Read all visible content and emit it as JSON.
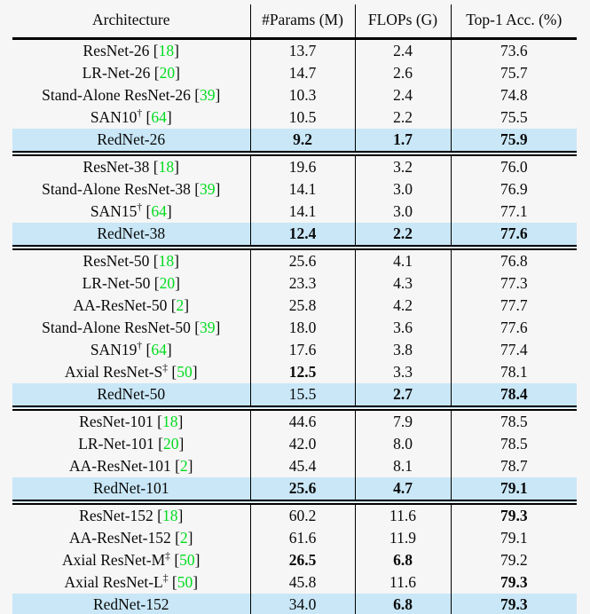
{
  "page": {
    "background": "#f6f6f6"
  },
  "table": {
    "columns": [
      "Architecture",
      "#Params (M)",
      "FLOPs (G)",
      "Top-1 Acc. (%)"
    ],
    "styles": {
      "highlight_row": "#c9e7f7",
      "citation_color": "#00dc1e",
      "rule_color": "#000000",
      "text_color": "#0a0a0a",
      "page_background": "#f6f6f6"
    },
    "sections": [
      {
        "rows": [
          {
            "name": "ResNet-26",
            "cite": "18",
            "params": "13.7",
            "flops": "2.4",
            "acc": "73.6"
          },
          {
            "name": "LR-Net-26",
            "cite": "20",
            "params": "14.7",
            "flops": "2.6",
            "acc": "75.7"
          },
          {
            "name": "Stand-Alone ResNet-26",
            "cite": "39",
            "params": "10.3",
            "flops": "2.4",
            "acc": "74.8"
          },
          {
            "name": "SAN10",
            "sup": "†",
            "cite": "64",
            "params": "10.5",
            "flops": "2.2",
            "acc": "75.5"
          },
          {
            "name": "RedNet-26",
            "highlight": true,
            "params": "9.2",
            "flops": "1.7",
            "acc": "75.9",
            "bold": [
              "params",
              "flops",
              "acc"
            ]
          }
        ]
      },
      {
        "rows": [
          {
            "name": "ResNet-38",
            "cite": "18",
            "params": "19.6",
            "flops": "3.2",
            "acc": "76.0"
          },
          {
            "name": "Stand-Alone ResNet-38",
            "cite": "39",
            "params": "14.1",
            "flops": "3.0",
            "acc": "76.9"
          },
          {
            "name": "SAN15",
            "sup": "†",
            "cite": "64",
            "params": "14.1",
            "flops": "3.0",
            "acc": "77.1"
          },
          {
            "name": "RedNet-38",
            "highlight": true,
            "params": "12.4",
            "flops": "2.2",
            "acc": "77.6",
            "bold": [
              "params",
              "flops",
              "acc"
            ]
          }
        ]
      },
      {
        "rows": [
          {
            "name": "ResNet-50",
            "cite": "18",
            "params": "25.6",
            "flops": "4.1",
            "acc": "76.8"
          },
          {
            "name": "LR-Net-50",
            "cite": "20",
            "params": "23.3",
            "flops": "4.3",
            "acc": "77.3"
          },
          {
            "name": "AA-ResNet-50",
            "cite": "2",
            "params": "25.8",
            "flops": "4.2",
            "acc": "77.7"
          },
          {
            "name": "Stand-Alone ResNet-50",
            "cite": "39",
            "params": "18.0",
            "flops": "3.6",
            "acc": "77.6"
          },
          {
            "name": "SAN19",
            "sup": "†",
            "cite": "64",
            "params": "17.6",
            "flops": "3.8",
            "acc": "77.4"
          },
          {
            "name": "Axial ResNet-S",
            "sup": "‡",
            "cite": "50",
            "params": "12.5",
            "flops": "3.3",
            "acc": "78.1",
            "bold": [
              "params"
            ]
          },
          {
            "name": "RedNet-50",
            "highlight": true,
            "params": "15.5",
            "flops": "2.7",
            "acc": "78.4",
            "bold": [
              "flops",
              "acc"
            ]
          }
        ]
      },
      {
        "rows": [
          {
            "name": "ResNet-101",
            "cite": "18",
            "params": "44.6",
            "flops": "7.9",
            "acc": "78.5"
          },
          {
            "name": "LR-Net-101",
            "cite": "20",
            "params": "42.0",
            "flops": "8.0",
            "acc": "78.5"
          },
          {
            "name": "AA-ResNet-101",
            "cite": "2",
            "params": "45.4",
            "flops": "8.1",
            "acc": "78.7"
          },
          {
            "name": "RedNet-101",
            "highlight": true,
            "params": "25.6",
            "flops": "4.7",
            "acc": "79.1",
            "bold": [
              "params",
              "flops",
              "acc"
            ]
          }
        ]
      },
      {
        "rows": [
          {
            "name": "ResNet-152",
            "cite": "18",
            "params": "60.2",
            "flops": "11.6",
            "acc": "79.3",
            "bold": [
              "acc"
            ]
          },
          {
            "name": "AA-ResNet-152",
            "cite": "2",
            "params": "61.6",
            "flops": "11.9",
            "acc": "79.1"
          },
          {
            "name": "Axial ResNet-M",
            "sup": "‡",
            "cite": "50",
            "params": "26.5",
            "flops": "6.8",
            "acc": "79.2",
            "bold": [
              "params",
              "flops"
            ]
          },
          {
            "name": "Axial ResNet-L",
            "sup": "‡",
            "cite": "50",
            "params": "45.8",
            "flops": "11.6",
            "acc": "79.3",
            "bold": [
              "acc"
            ]
          },
          {
            "name": "RedNet-152",
            "highlight": true,
            "params": "34.0",
            "flops": "6.8",
            "acc": "79.3",
            "bold": [
              "flops",
              "acc"
            ]
          }
        ]
      }
    ]
  }
}
